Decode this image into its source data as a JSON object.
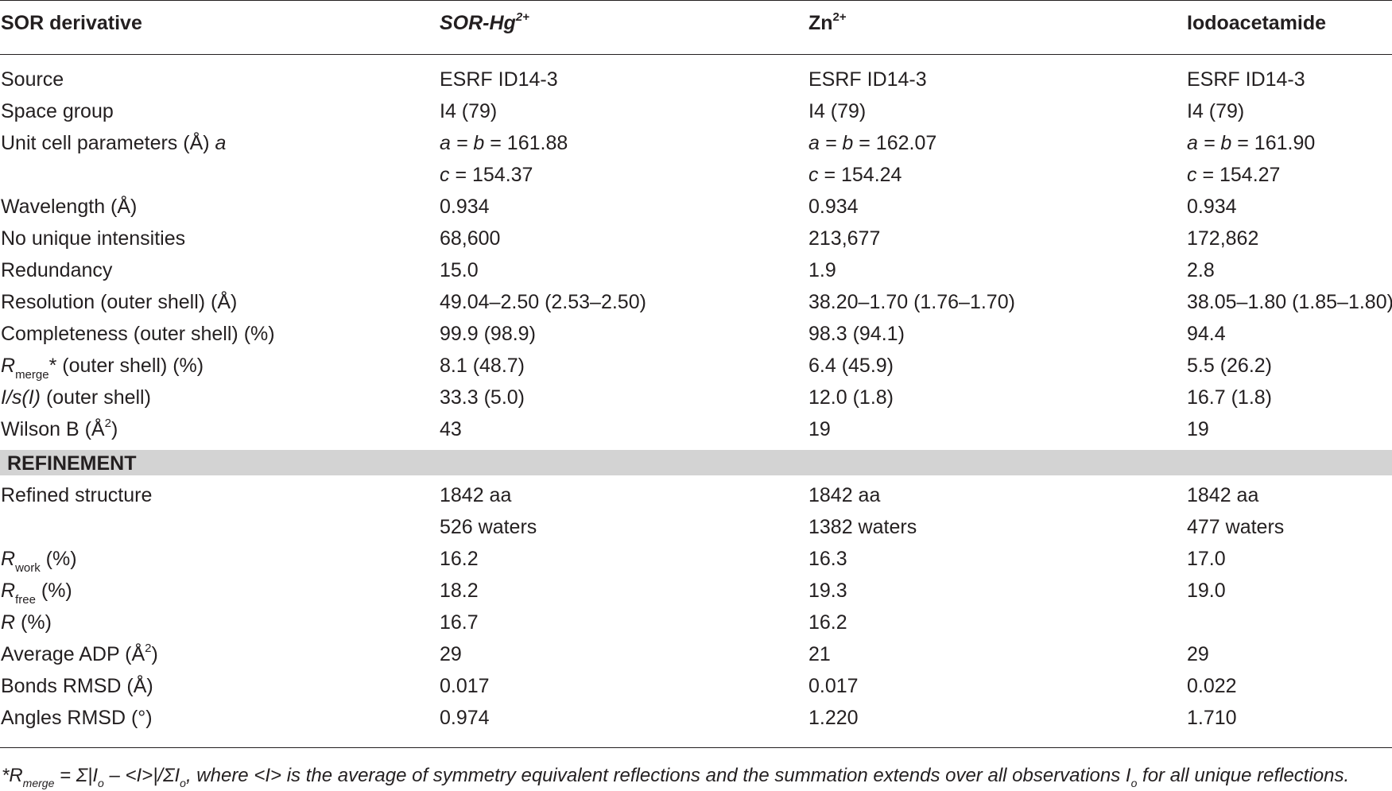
{
  "table": {
    "columns": [
      "SOR derivative",
      "SOR-Hg",
      "Zn",
      "Iodoacetamide"
    ],
    "col_sup": [
      "",
      "2+",
      "2+",
      ""
    ],
    "rows": [
      {
        "label": "Source",
        "values": [
          "ESRF ID14-3",
          "ESRF ID14-3",
          "ESRF ID14-3"
        ]
      },
      {
        "label": "Space group",
        "values": [
          "I4 (79)",
          "I4 (79)",
          "I4 (79)"
        ]
      },
      {
        "label": "Unit cell parameters (Å) ",
        "label_it": "a",
        "values": [
          "= 161.88",
          "= 162.07",
          "= 161.90"
        ]
      },
      {
        "label": "",
        "values": [
          "= 154.37",
          "= 154.24",
          "= 154.27"
        ]
      },
      {
        "label": "Wavelength (Å)",
        "values": [
          "0.934",
          "0.934",
          "0.934"
        ]
      },
      {
        "label": "No unique intensities",
        "values": [
          "68,600",
          "213,677",
          "172,862"
        ]
      },
      {
        "label": "Redundancy",
        "values": [
          "15.0",
          "1.9",
          "2.8"
        ]
      },
      {
        "label": "Resolution (outer shell) (Å)",
        "values": [
          "49.04–2.50 (2.53–2.50)",
          "38.20–1.70 (1.76–1.70)",
          "38.05–1.80 (1.85–1.80)"
        ]
      },
      {
        "label": "Completeness (outer shell) (%)",
        "values": [
          "99.9 (98.9)",
          "98.3 (94.1)",
          "94.4"
        ]
      },
      {
        "label": "* (outer shell) (%)",
        "label_it": "R",
        "label_sub": "merge",
        "values": [
          "8.1 (48.7)",
          "6.4 (45.9)",
          "5.5 (26.2)"
        ]
      },
      {
        "label": " (outer shell)",
        "label_it": "I/s(I)",
        "values": [
          "33.3 (5.0)",
          "12.0 (1.8)",
          "16.7 (1.8)"
        ]
      },
      {
        "label": "Wilson B (Å",
        "label_sup": "2",
        "label_end": ")",
        "values": [
          "43",
          "19",
          "19"
        ]
      }
    ],
    "section": "REFINEMENT",
    "rows2": [
      {
        "label": "Refined structure",
        "values": [
          "1842 aa",
          "1842 aa",
          "1842 aa"
        ]
      },
      {
        "label": "",
        "values": [
          "526 waters",
          "1382 waters",
          "477 waters"
        ]
      },
      {
        "label": " (%)",
        "label_it": "R",
        "label_sub": "work",
        "values": [
          "16.2",
          "16.3",
          "17.0"
        ]
      },
      {
        "label": " (%)",
        "label_it": "R",
        "label_sub": "free",
        "values": [
          "18.2",
          "19.3",
          "19.0"
        ]
      },
      {
        "label": " (%)",
        "label_it": "R",
        "values": [
          "16.7",
          "16.2",
          ""
        ]
      },
      {
        "label": "Average ADP (Å",
        "label_sup": "2",
        "label_end": ")",
        "values": [
          "29",
          "21",
          "29"
        ]
      },
      {
        "label": "Bonds RMSD (Å)",
        "values": [
          "0.017",
          "0.017",
          "0.022"
        ]
      },
      {
        "label": "Angles RMSD (°)",
        "values": [
          "0.974",
          "1.220",
          "1.710"
        ]
      }
    ],
    "unit_cell_a_prefix": "a = b ",
    "unit_cell_c_prefix": "c "
  },
  "footnote": {
    "part1": "*R",
    "sub1": "merge",
    "part2": " = Σ|I",
    "sub2": "o",
    "part3": " – <I>|/ΣI",
    "sub3": "o",
    "part4": ", where <I> is the average of symmetry equivalent reflections and the summation extends over all observations I",
    "sub4": "o",
    "part5": " for all unique reflections."
  }
}
